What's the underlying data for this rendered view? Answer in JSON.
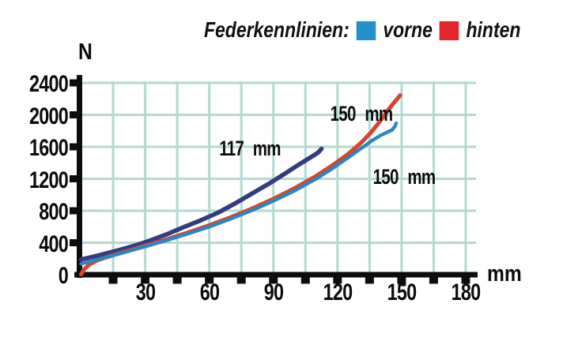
{
  "legend": {
    "title": "Federkennlinien:",
    "items": [
      {
        "label": "vorne",
        "color": "#2590cb"
      },
      {
        "label": "hinten",
        "color": "#e4252a"
      }
    ]
  },
  "axes": {
    "y_unit": "N",
    "x_unit": "mm",
    "y_ticks": [
      "2400",
      "2000",
      "1600",
      "1200",
      "800",
      "400",
      "0"
    ],
    "x_ticks": [
      "30",
      "60",
      "90",
      "120",
      "150",
      "180"
    ]
  },
  "colors": {
    "grid": "#b2dad1",
    "axis": "#0d0d0d",
    "curve_vorne": "#2b85c4",
    "curve_hinten": "#d5452f",
    "curve_117": "#333d7e"
  },
  "chart_data": {
    "type": "line",
    "title": "Federkennlinien",
    "xlabel": "mm",
    "ylabel": "N",
    "xlim": [
      0,
      186
    ],
    "ylim": [
      0,
      2430
    ],
    "x_grid_step": 15,
    "y_grid_step": 400,
    "grid": true,
    "legend_position": "top",
    "series": [
      {
        "name": "117 mm",
        "color": "#333d7e",
        "points": [
          [
            0,
            190
          ],
          [
            8,
            240
          ],
          [
            16,
            295
          ],
          [
            24,
            355
          ],
          [
            32,
            425
          ],
          [
            40,
            505
          ],
          [
            48,
            595
          ],
          [
            56,
            680
          ],
          [
            64,
            775
          ],
          [
            72,
            890
          ],
          [
            80,
            1015
          ],
          [
            88,
            1140
          ],
          [
            96,
            1275
          ],
          [
            102,
            1380
          ],
          [
            106,
            1445
          ],
          [
            109,
            1495
          ],
          [
            111,
            1530
          ],
          [
            112.5,
            1575
          ]
        ]
      },
      {
        "name": "hinten",
        "color": "#d5452f",
        "points": [
          [
            0,
            5
          ],
          [
            1.5,
            70
          ],
          [
            4,
            130
          ],
          [
            8,
            185
          ],
          [
            15,
            245
          ],
          [
            22,
            300
          ],
          [
            30,
            362
          ],
          [
            40,
            442
          ],
          [
            50,
            527
          ],
          [
            60,
            618
          ],
          [
            70,
            718
          ],
          [
            80,
            827
          ],
          [
            90,
            948
          ],
          [
            100,
            1082
          ],
          [
            110,
            1235
          ],
          [
            118,
            1375
          ],
          [
            125,
            1510
          ],
          [
            131,
            1650
          ],
          [
            136,
            1790
          ],
          [
            140,
            1925
          ],
          [
            143,
            2035
          ],
          [
            146,
            2140
          ],
          [
            148,
            2200
          ],
          [
            149.3,
            2245
          ]
        ]
      },
      {
        "name": "vorne",
        "color": "#2b85c4",
        "points": [
          [
            0,
            135
          ],
          [
            8,
            192
          ],
          [
            15,
            240
          ],
          [
            22,
            292
          ],
          [
            30,
            352
          ],
          [
            40,
            430
          ],
          [
            50,
            512
          ],
          [
            60,
            600
          ],
          [
            70,
            698
          ],
          [
            80,
            805
          ],
          [
            90,
            922
          ],
          [
            100,
            1052
          ],
          [
            110,
            1200
          ],
          [
            118,
            1335
          ],
          [
            125,
            1465
          ],
          [
            131,
            1580
          ],
          [
            136,
            1675
          ],
          [
            140,
            1740
          ],
          [
            143,
            1780
          ],
          [
            145.5,
            1810
          ],
          [
            146.8,
            1855
          ],
          [
            147.5,
            1895
          ]
        ]
      }
    ],
    "annotations": [
      {
        "text": "150 mm",
        "mm": 131,
        "N": 2025
      },
      {
        "text": "117 mm",
        "mm": 79,
        "N": 1590
      },
      {
        "text": "150 mm",
        "mm": 151,
        "N": 1235
      }
    ]
  }
}
